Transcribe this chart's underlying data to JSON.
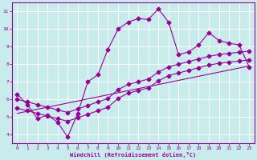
{
  "bg_color": "#c8ecec",
  "line_color": "#990099",
  "grid_color": "#ffffff",
  "xlabel": "Windchill (Refroidissement éolien,°C)",
  "xlabel_color": "#990099",
  "tick_color": "#990099",
  "xlim": [
    -0.5,
    23.5
  ],
  "ylim": [
    3.5,
    11.5
  ],
  "yticks": [
    4,
    5,
    6,
    7,
    8,
    9,
    10,
    11
  ],
  "xticks": [
    0,
    1,
    2,
    3,
    4,
    5,
    6,
    7,
    8,
    9,
    10,
    11,
    12,
    13,
    14,
    15,
    16,
    17,
    18,
    19,
    20,
    21,
    22,
    23
  ],
  "series1_x": [
    0,
    1,
    2,
    3,
    4,
    5,
    6,
    7,
    8,
    9,
    10,
    11,
    12,
    13,
    14,
    15,
    16,
    17,
    18,
    19,
    20,
    21,
    22,
    23
  ],
  "series1_y": [
    6.3,
    5.7,
    4.9,
    5.1,
    4.7,
    3.85,
    5.2,
    7.0,
    7.4,
    8.85,
    10.0,
    10.4,
    10.6,
    10.55,
    11.15,
    10.4,
    8.55,
    8.7,
    9.1,
    9.8,
    9.35,
    9.2,
    9.1,
    7.85
  ],
  "series2_x": [
    0,
    1,
    2,
    3,
    4,
    5,
    6,
    7,
    8,
    9,
    10,
    11,
    12,
    13,
    14,
    15,
    16,
    17,
    18,
    19,
    20,
    21,
    22,
    23
  ],
  "series2_y": [
    6.0,
    5.85,
    5.7,
    5.55,
    5.4,
    5.25,
    5.45,
    5.65,
    5.85,
    6.05,
    6.55,
    6.85,
    7.0,
    7.15,
    7.55,
    7.85,
    8.0,
    8.15,
    8.3,
    8.45,
    8.55,
    8.62,
    8.68,
    8.75
  ],
  "series3_x": [
    0,
    1,
    2,
    3,
    4,
    5,
    6,
    7,
    8,
    9,
    10,
    11,
    12,
    13,
    14,
    15,
    16,
    17,
    18,
    19,
    20,
    21,
    22,
    23
  ],
  "series3_y": [
    5.5,
    5.35,
    5.2,
    5.05,
    4.9,
    4.75,
    4.95,
    5.15,
    5.35,
    5.55,
    6.05,
    6.35,
    6.5,
    6.65,
    7.05,
    7.35,
    7.5,
    7.65,
    7.8,
    7.95,
    8.05,
    8.12,
    8.18,
    8.25
  ],
  "series4_x": [
    0,
    23
  ],
  "series4_y": [
    5.2,
    7.9
  ]
}
